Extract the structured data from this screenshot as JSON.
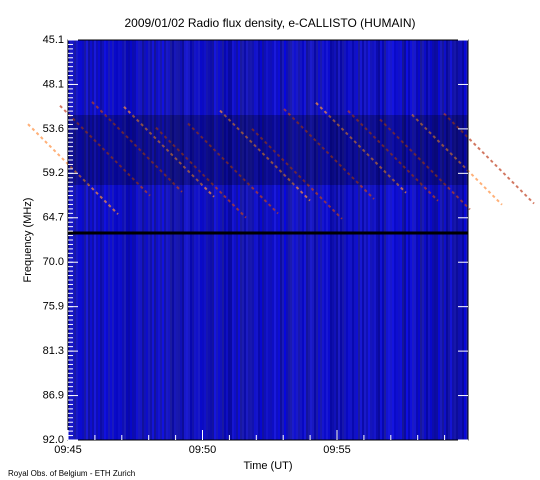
{
  "chart_data": {
    "type": "heatmap",
    "title": "2009/01/02  Radio flux density, e-CALLISTO (HUMAIN)",
    "y_label": "Frequency (MHz)",
    "x_label": "Time (UT)",
    "y_axis_labels": [
      "45.1",
      "48.1",
      "53.6",
      "59.2",
      "64.7",
      "70.0",
      "75.9",
      "81.3",
      "86.9",
      "92.0"
    ],
    "x_axis_labels": [
      "09:45",
      "09:50",
      "09:55"
    ],
    "footer": "Royal Obs. of Belgium - ETH Zurich"
  }
}
